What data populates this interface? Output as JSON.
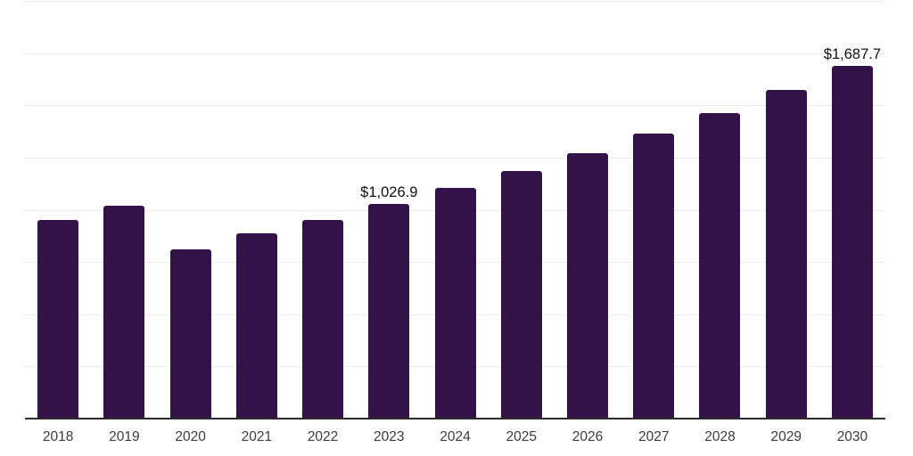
{
  "chart_data": {
    "type": "bar",
    "title": "",
    "xlabel": "",
    "ylabel": "",
    "categories": [
      "2018",
      "2019",
      "2020",
      "2021",
      "2022",
      "2023",
      "2024",
      "2025",
      "2026",
      "2027",
      "2028",
      "2029",
      "2030"
    ],
    "values": [
      951,
      1021,
      809,
      885,
      952,
      1026.9,
      1102.4,
      1183.4,
      1270.4,
      1363.8,
      1464.1,
      1571.7,
      1687.7
    ],
    "ylim": [
      0,
      2000
    ],
    "gridline_interval": 250,
    "grid": true,
    "legend": "none",
    "y_tick_labels_visible": false,
    "annotations": [
      {
        "category": "2023",
        "index": 5,
        "text": "$1,026.9"
      },
      {
        "category": "2030",
        "index": 12,
        "text": "$1,687.7"
      }
    ],
    "colors": {
      "bar": "#331347",
      "gridline": "#ececec",
      "axis_line": "#2b2b2b",
      "tick_label": "#3d3d3d",
      "annotation": "#111111",
      "background": "#ffffff"
    }
  }
}
